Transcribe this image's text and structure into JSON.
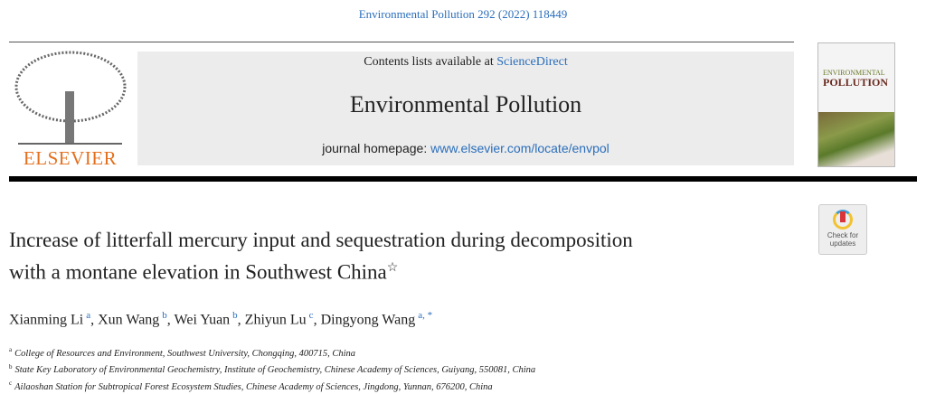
{
  "citation": "Environmental Pollution 292 (2022) 118449",
  "publisher": "ELSEVIER",
  "masthead": {
    "contents_prefix": "Contents lists available at ",
    "contents_link": "ScienceDirect",
    "journal": "Environmental Pollution",
    "homepage_prefix": "journal homepage: ",
    "homepage_link": "www.elsevier.com/locate/envpol"
  },
  "cover": {
    "line1": "ENVIRONMENTAL",
    "line2": "POLLUTION"
  },
  "check_updates": {
    "line1": "Check for",
    "line2": "updates"
  },
  "title": {
    "line1": "Increase of litterfall mercury input and sequestration during decomposition",
    "line2": "with a montane elevation in Southwest China",
    "mark": "☆"
  },
  "authors": [
    {
      "name": "Xianming Li",
      "aff": "a"
    },
    {
      "name": "Xun Wang",
      "aff": "b"
    },
    {
      "name": "Wei Yuan",
      "aff": "b"
    },
    {
      "name": "Zhiyun Lu",
      "aff": "c"
    },
    {
      "name": "Dingyong Wang",
      "aff": "a, *"
    }
  ],
  "affiliations": [
    {
      "key": "a",
      "text": "College of Resources and Environment, Southwest University, Chongqing, 400715, China"
    },
    {
      "key": "b",
      "text": "State Key Laboratory of Environmental Geochemistry, Institute of Geochemistry, Chinese Academy of Sciences, Guiyang, 550081, China"
    },
    {
      "key": "c",
      "text": "Ailaoshan Station for Subtropical Forest Ecosystem Studies, Chinese Academy of Sciences, Jingdong, Yunnan, 676200, China"
    }
  ],
  "colors": {
    "link": "#2a6ebb",
    "elsevier": "#e4701e"
  }
}
